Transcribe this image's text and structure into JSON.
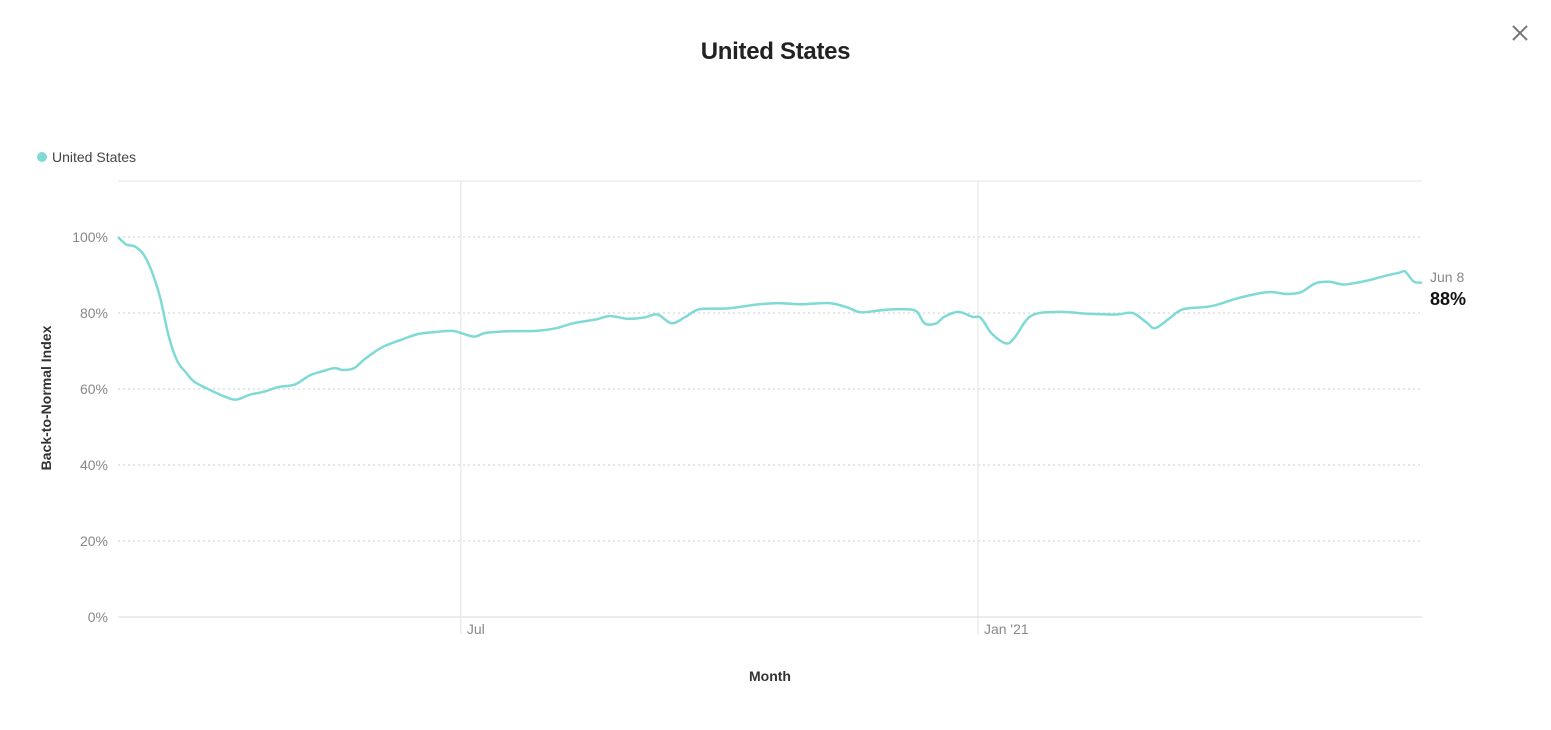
{
  "modal": {
    "title": "United States",
    "close_icon": "close-icon"
  },
  "colors": {
    "series": "#7fdad6",
    "grid": "#cccccc",
    "vline": "#e2e2e2"
  },
  "chart_data": {
    "type": "line",
    "title": "United States",
    "xlabel": "Month",
    "ylabel": "Back-to-Normal Index",
    "ylim": [
      0,
      100
    ],
    "yticks": [
      "0%",
      "20%",
      "40%",
      "60%",
      "80%",
      "100%"
    ],
    "x_range": [
      "2020-03-01",
      "2021-06-08"
    ],
    "xticks": [
      {
        "date": "2020-07-01",
        "label": "Jul"
      },
      {
        "date": "2021-01-01",
        "label": "Jan '21"
      }
    ],
    "grid": "horizontal dotted",
    "legend_position": "top-left",
    "end_label": {
      "date": "Jun 8",
      "value": "88%"
    },
    "series": [
      {
        "name": "United States",
        "points": [
          [
            "2020-03-01",
            100
          ],
          [
            "2020-03-04",
            98
          ],
          [
            "2020-03-07",
            97.5
          ],
          [
            "2020-03-10",
            95.5
          ],
          [
            "2020-03-13",
            91
          ],
          [
            "2020-03-16",
            84
          ],
          [
            "2020-03-19",
            74
          ],
          [
            "2020-03-22",
            67.5
          ],
          [
            "2020-03-25",
            64.5
          ],
          [
            "2020-03-28",
            62
          ],
          [
            "2020-04-02",
            60
          ],
          [
            "2020-04-08",
            58
          ],
          [
            "2020-04-12",
            57.2
          ],
          [
            "2020-04-17",
            58.5
          ],
          [
            "2020-04-22",
            59.3
          ],
          [
            "2020-04-27",
            60.5
          ],
          [
            "2020-05-03",
            61.2
          ],
          [
            "2020-05-08",
            63.5
          ],
          [
            "2020-05-12",
            64.5
          ],
          [
            "2020-05-17",
            65.5
          ],
          [
            "2020-05-20",
            65
          ],
          [
            "2020-05-24",
            65.5
          ],
          [
            "2020-05-28",
            68
          ],
          [
            "2020-06-03",
            71
          ],
          [
            "2020-06-10",
            73
          ],
          [
            "2020-06-16",
            74.5
          ],
          [
            "2020-06-22",
            75
          ],
          [
            "2020-06-28",
            75.3
          ],
          [
            "2020-07-02",
            74.5
          ],
          [
            "2020-07-06",
            73.8
          ],
          [
            "2020-07-10",
            74.8
          ],
          [
            "2020-07-18",
            75.2
          ],
          [
            "2020-07-28",
            75.3
          ],
          [
            "2020-08-04",
            76
          ],
          [
            "2020-08-10",
            77.3
          ],
          [
            "2020-08-18",
            78.3
          ],
          [
            "2020-08-23",
            79.2
          ],
          [
            "2020-08-29",
            78.5
          ],
          [
            "2020-09-04",
            78.8
          ],
          [
            "2020-09-09",
            79.6
          ],
          [
            "2020-09-14",
            77.3
          ],
          [
            "2020-09-19",
            79
          ],
          [
            "2020-09-24",
            81
          ],
          [
            "2020-10-04",
            81.2
          ],
          [
            "2020-10-14",
            82.2
          ],
          [
            "2020-10-22",
            82.6
          ],
          [
            "2020-10-30",
            82.3
          ],
          [
            "2020-11-09",
            82.6
          ],
          [
            "2020-11-15",
            81.6
          ],
          [
            "2020-11-20",
            80.2
          ],
          [
            "2020-11-25",
            80.5
          ],
          [
            "2020-11-30",
            80.9
          ],
          [
            "2020-12-05",
            81
          ],
          [
            "2020-12-10",
            80.5
          ],
          [
            "2020-12-13",
            77.3
          ],
          [
            "2020-12-17",
            77.2
          ],
          [
            "2020-12-20",
            79
          ],
          [
            "2020-12-25",
            80.3
          ],
          [
            "2020-12-30",
            79
          ],
          [
            "2021-01-02",
            78.7
          ],
          [
            "2021-01-06",
            74.5
          ],
          [
            "2021-01-11",
            72
          ],
          [
            "2021-01-14",
            73.5
          ],
          [
            "2021-01-20",
            79.3
          ],
          [
            "2021-01-30",
            80.3
          ],
          [
            "2021-02-09",
            79.8
          ],
          [
            "2021-02-19",
            79.6
          ],
          [
            "2021-02-25",
            80
          ],
          [
            "2021-03-02",
            77.5
          ],
          [
            "2021-03-05",
            76
          ],
          [
            "2021-03-10",
            78.5
          ],
          [
            "2021-03-15",
            81
          ],
          [
            "2021-03-25",
            81.8
          ],
          [
            "2021-04-04",
            84
          ],
          [
            "2021-04-14",
            85.5
          ],
          [
            "2021-04-21",
            85
          ],
          [
            "2021-04-26",
            85.5
          ],
          [
            "2021-05-01",
            87.8
          ],
          [
            "2021-05-06",
            88.2
          ],
          [
            "2021-05-11",
            87.5
          ],
          [
            "2021-05-16",
            88
          ],
          [
            "2021-05-21",
            88.8
          ],
          [
            "2021-05-26",
            89.8
          ],
          [
            "2021-05-31",
            90.6
          ],
          [
            "2021-06-02",
            90.9
          ],
          [
            "2021-06-05",
            88.3
          ],
          [
            "2021-06-08",
            88
          ]
        ]
      }
    ]
  }
}
